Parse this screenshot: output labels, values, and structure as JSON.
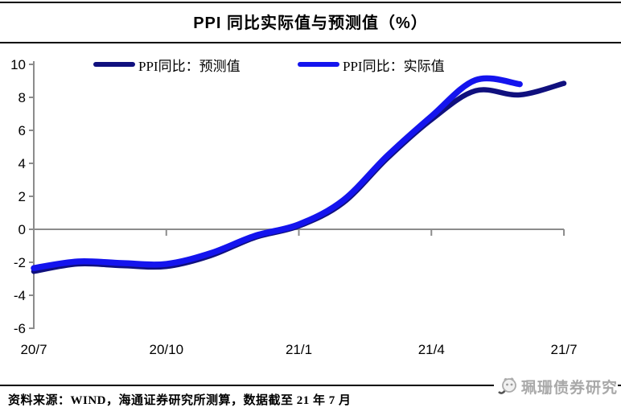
{
  "title": "PPI 同比实际值与预测值（%）",
  "legend": {
    "forecast_label": "PPI同比：预测值",
    "actual_label": "PPI同比：实际值"
  },
  "footer": {
    "source_text": "资料来源：WIND，海通证券研究所测算，数据截至 21 年 7 月"
  },
  "watermark": {
    "text": "珮珊债券研究"
  },
  "colors": {
    "forecast_line": "#10107e",
    "actual_line": "#1414ee",
    "axis_gray": "#8c8c8c",
    "watermark_gray": "#a9a9a9"
  },
  "chart_data": {
    "type": "line",
    "title": "PPI 同比实际值与预测值（%）",
    "x": [
      "20/7",
      "20/8",
      "20/9",
      "20/10",
      "20/11",
      "20/12",
      "21/1",
      "21/2",
      "21/3",
      "21/4",
      "21/5",
      "21/6",
      "21/7"
    ],
    "x_tick_labels": [
      "20/7",
      "20/10",
      "21/1",
      "21/4",
      "21/7"
    ],
    "x_tick_indices": [
      0,
      3,
      6,
      9,
      12
    ],
    "y_ticks": [
      10,
      8,
      6,
      4,
      2,
      0,
      -2,
      -4,
      -6
    ],
    "ylim": [
      -6,
      10
    ],
    "grid": false,
    "zero_axis_line": true,
    "legend_position": "top",
    "series": [
      {
        "name": "PPI同比：预测值",
        "color": "#10107e",
        "width": 6.5,
        "values": [
          -2.55,
          -2.1,
          -2.2,
          -2.25,
          -1.6,
          -0.5,
          0.2,
          1.6,
          4.3,
          6.65,
          8.4,
          8.15,
          8.85
        ]
      },
      {
        "name": "PPI同比：实际值",
        "color": "#1414ee",
        "width": 7.5,
        "values": [
          -2.35,
          -1.95,
          -2.05,
          -2.1,
          -1.45,
          -0.4,
          0.3,
          1.75,
          4.45,
          6.85,
          9.05,
          8.8,
          null
        ]
      }
    ]
  },
  "layout_note_values_visible_only": true
}
